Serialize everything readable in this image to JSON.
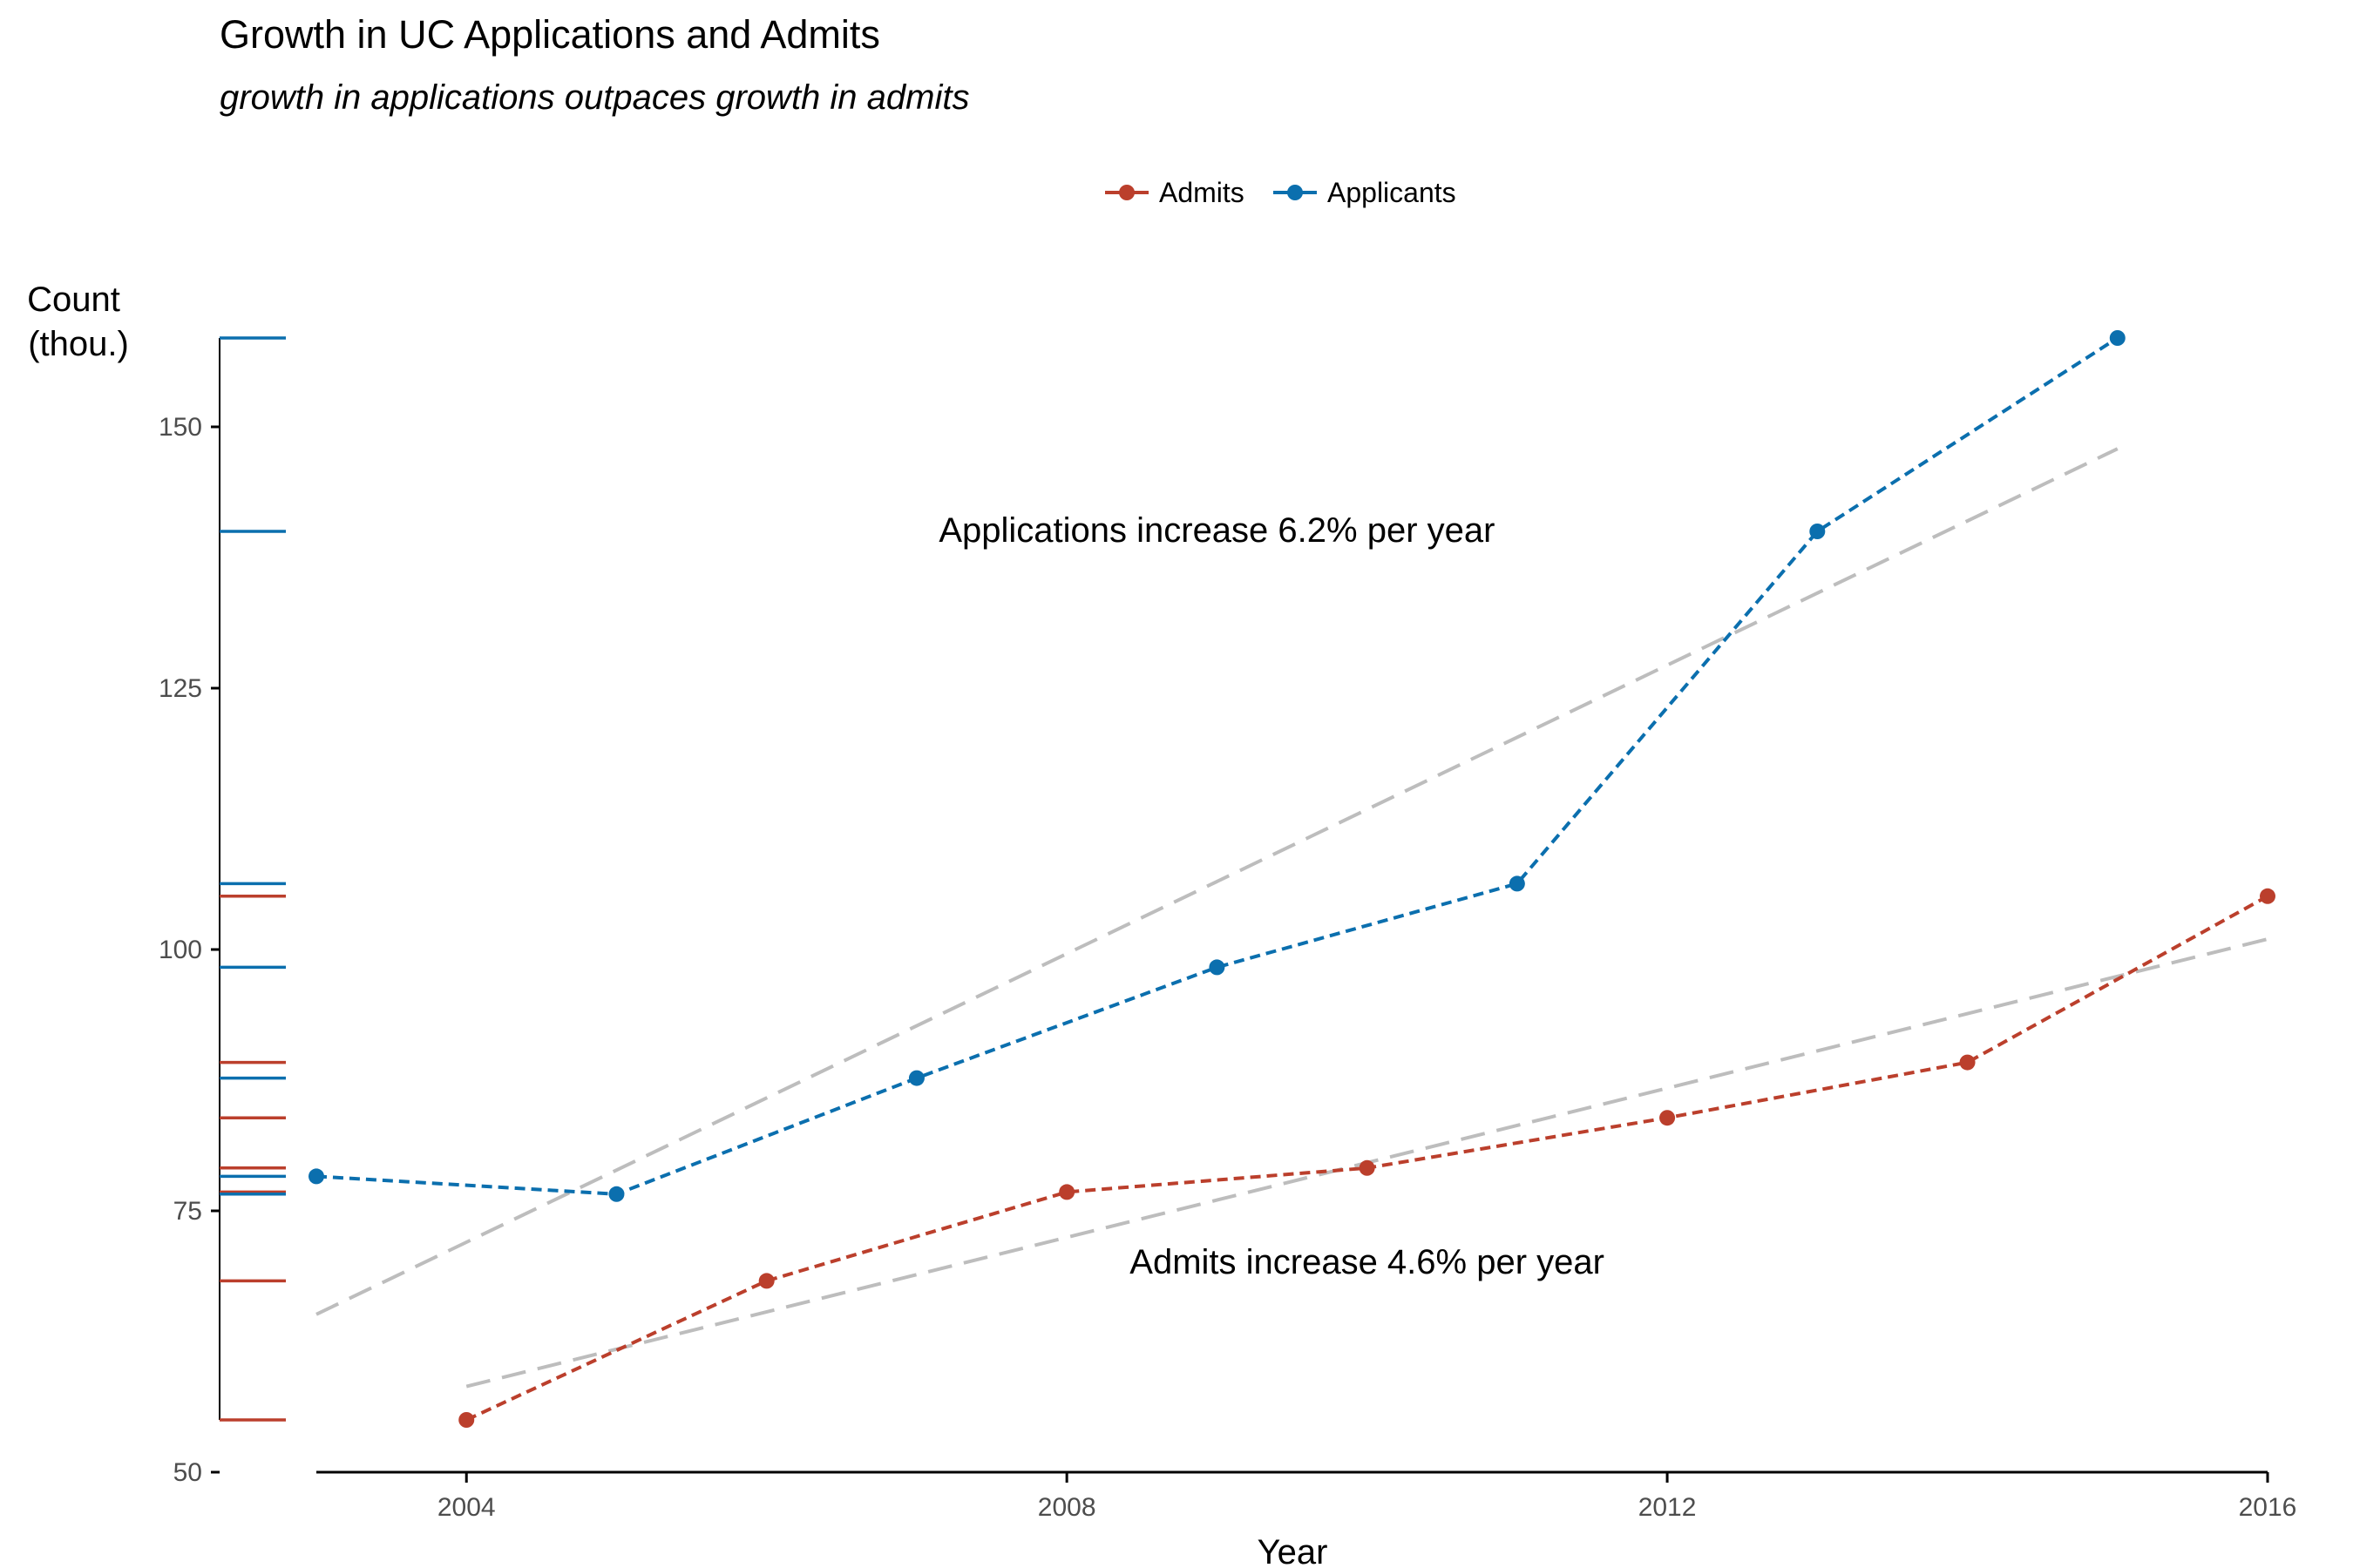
{
  "chart_data": {
    "type": "line",
    "title": "Growth in UC Applications and Admits",
    "subtitle": "growth in applications outpaces growth in admits",
    "xlabel": "Year",
    "ylabel_lines": [
      "Count",
      "(thou.)"
    ],
    "xlim": [
      2003,
      2016
    ],
    "ylim": [
      50,
      158.5
    ],
    "x_ticks": [
      2004,
      2008,
      2012,
      2016
    ],
    "y_ticks": [
      50,
      75,
      100,
      125,
      150
    ],
    "legend_position": "top-center",
    "grid": false,
    "series": [
      {
        "name": "Admits",
        "color": "#BB3F2C",
        "x": [
          2004,
          2006,
          2008,
          2010,
          2012,
          2014,
          2016
        ],
        "y": [
          55.0,
          68.3,
          76.8,
          79.1,
          83.9,
          89.2,
          105.1
        ],
        "trend": [
          [
            2004,
            58.2
          ],
          [
            2016,
            101.0
          ]
        ]
      },
      {
        "name": "Applicants",
        "color": "#0B6FAE",
        "x": [
          2003,
          2005,
          2007,
          2009,
          2011,
          2013,
          2015
        ],
        "y": [
          78.3,
          76.6,
          87.7,
          98.3,
          106.3,
          140.0,
          158.5
        ],
        "trend": [
          [
            2003,
            65.1
          ],
          [
            2015,
            147.9
          ]
        ]
      }
    ],
    "trend_color": "#BDBDBD",
    "annotations": [
      {
        "text": "Applications increase 6.2% per year",
        "x": 2009.0,
        "y": 139.0
      },
      {
        "text": "Admits increase 4.6% per year",
        "x": 2010.0,
        "y": 69.0
      }
    ]
  }
}
